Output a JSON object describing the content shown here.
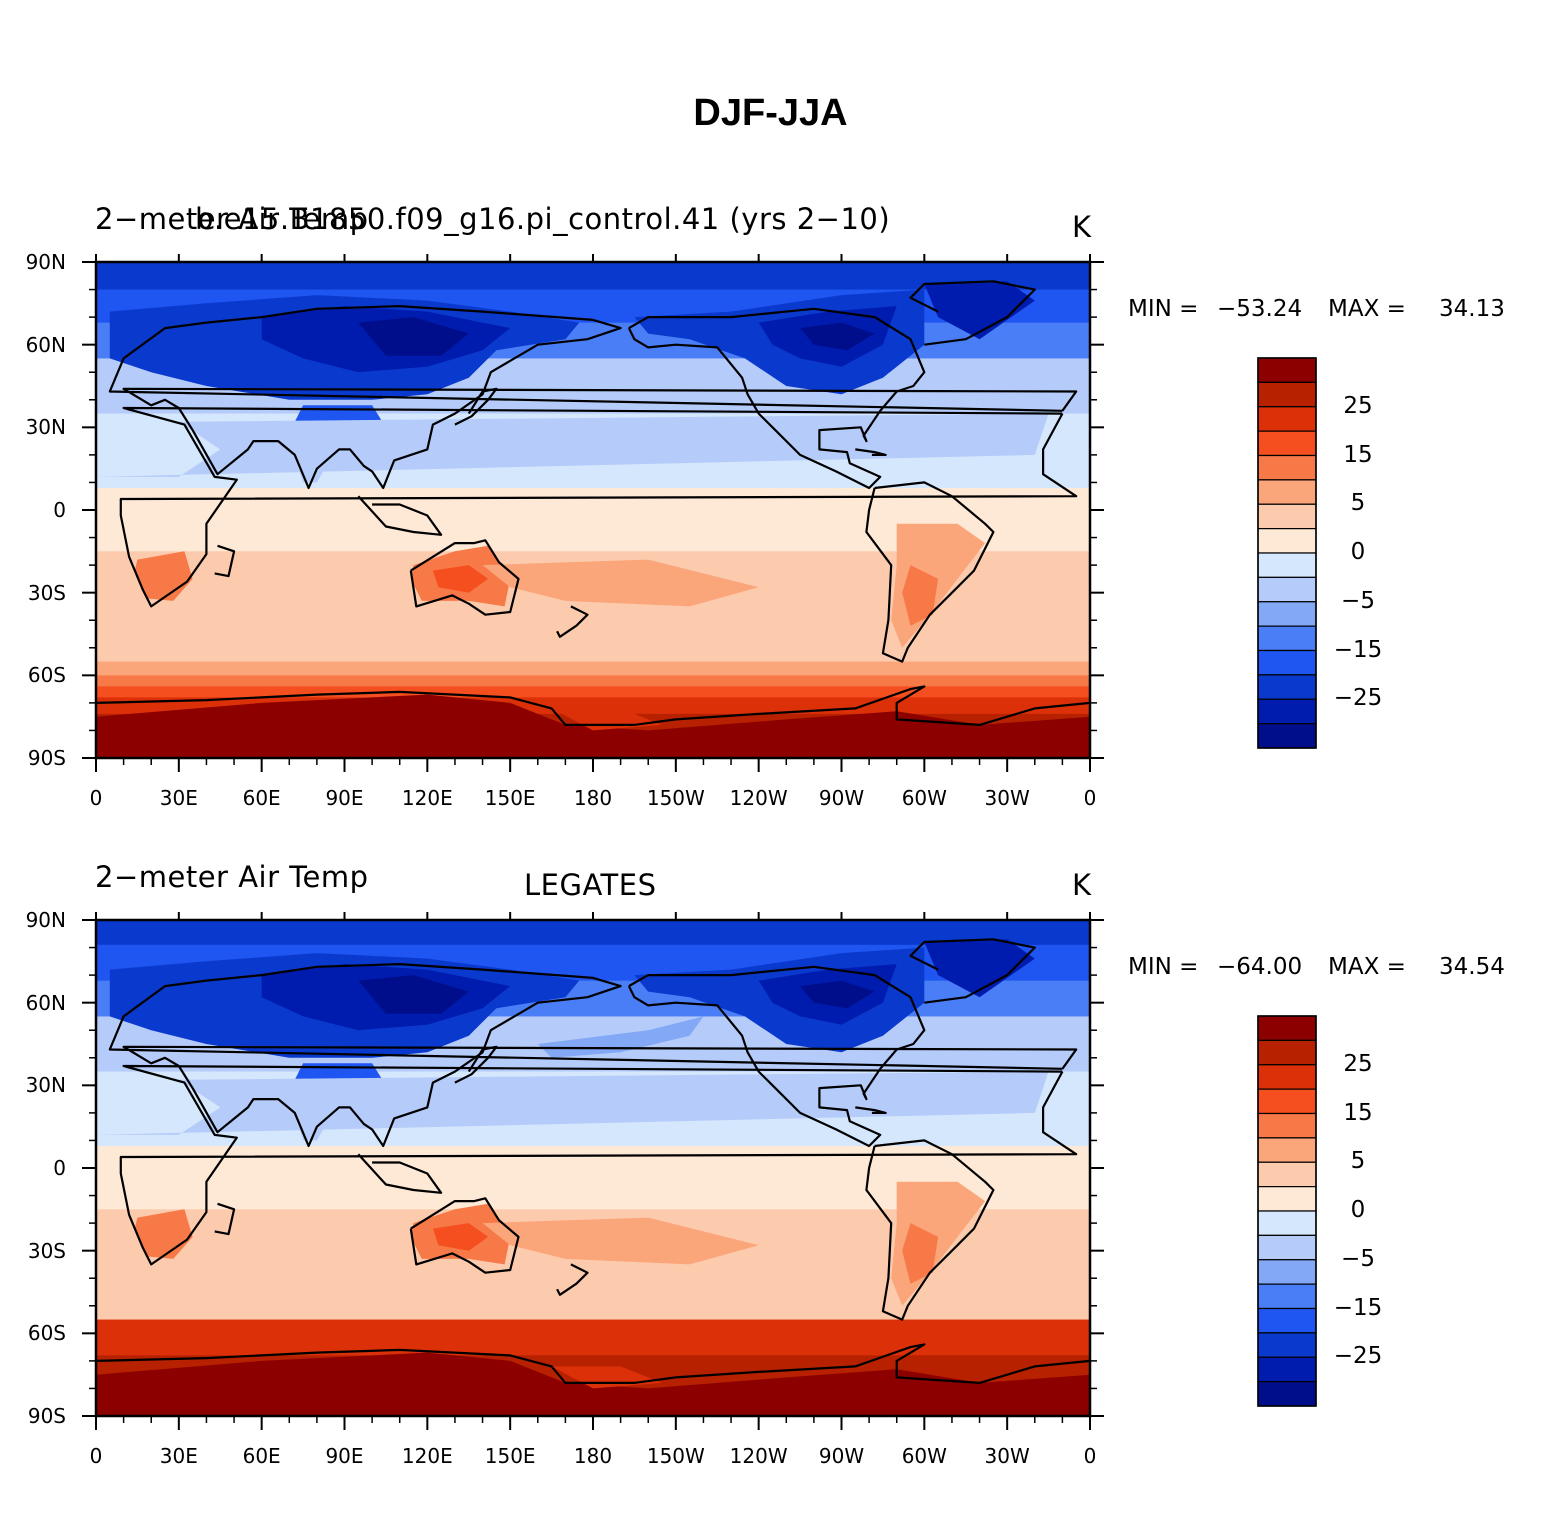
{
  "figure": {
    "title": "DJF-JJA"
  },
  "colors": {
    "levels": [
      "#000e8c",
      "#001cae",
      "#0a39ce",
      "#1f55f0",
      "#4a7ef7",
      "#82a8f6",
      "#b5cbfa",
      "#d5e7fd",
      "#fee8d6",
      "#fccbad",
      "#fba57b",
      "#f87948",
      "#f54e1f",
      "#dc3009",
      "#b72100",
      "#8c0000"
    ]
  },
  "panels": [
    {
      "left_title": "2−meter Air Temp",
      "center_title": "b.e15.B1850.f09_g16.pi_control.41 (yrs 2−10)",
      "units": "K",
      "min_label": "MIN =",
      "min_value": "−53.24",
      "max_label": "MAX =",
      "max_value": "34.13"
    },
    {
      "left_title": "2−meter Air Temp",
      "center_title": "LEGATES",
      "units": "K",
      "min_label": "MIN =",
      "min_value": "−64.00",
      "max_label": "MAX =",
      "max_value": "34.54"
    }
  ],
  "colorbar": {
    "labels": [
      "25",
      "15",
      "5",
      "0",
      "−5",
      "−15",
      "−25"
    ]
  },
  "axes": {
    "lat_labels": [
      "90N",
      "60N",
      "30N",
      "0",
      "30S",
      "60S",
      "90S"
    ],
    "lon_labels": [
      "0",
      "30E",
      "60E",
      "90E",
      "120E",
      "150E",
      "180",
      "150W",
      "120W",
      "90W",
      "60W",
      "30W",
      "0"
    ]
  }
}
